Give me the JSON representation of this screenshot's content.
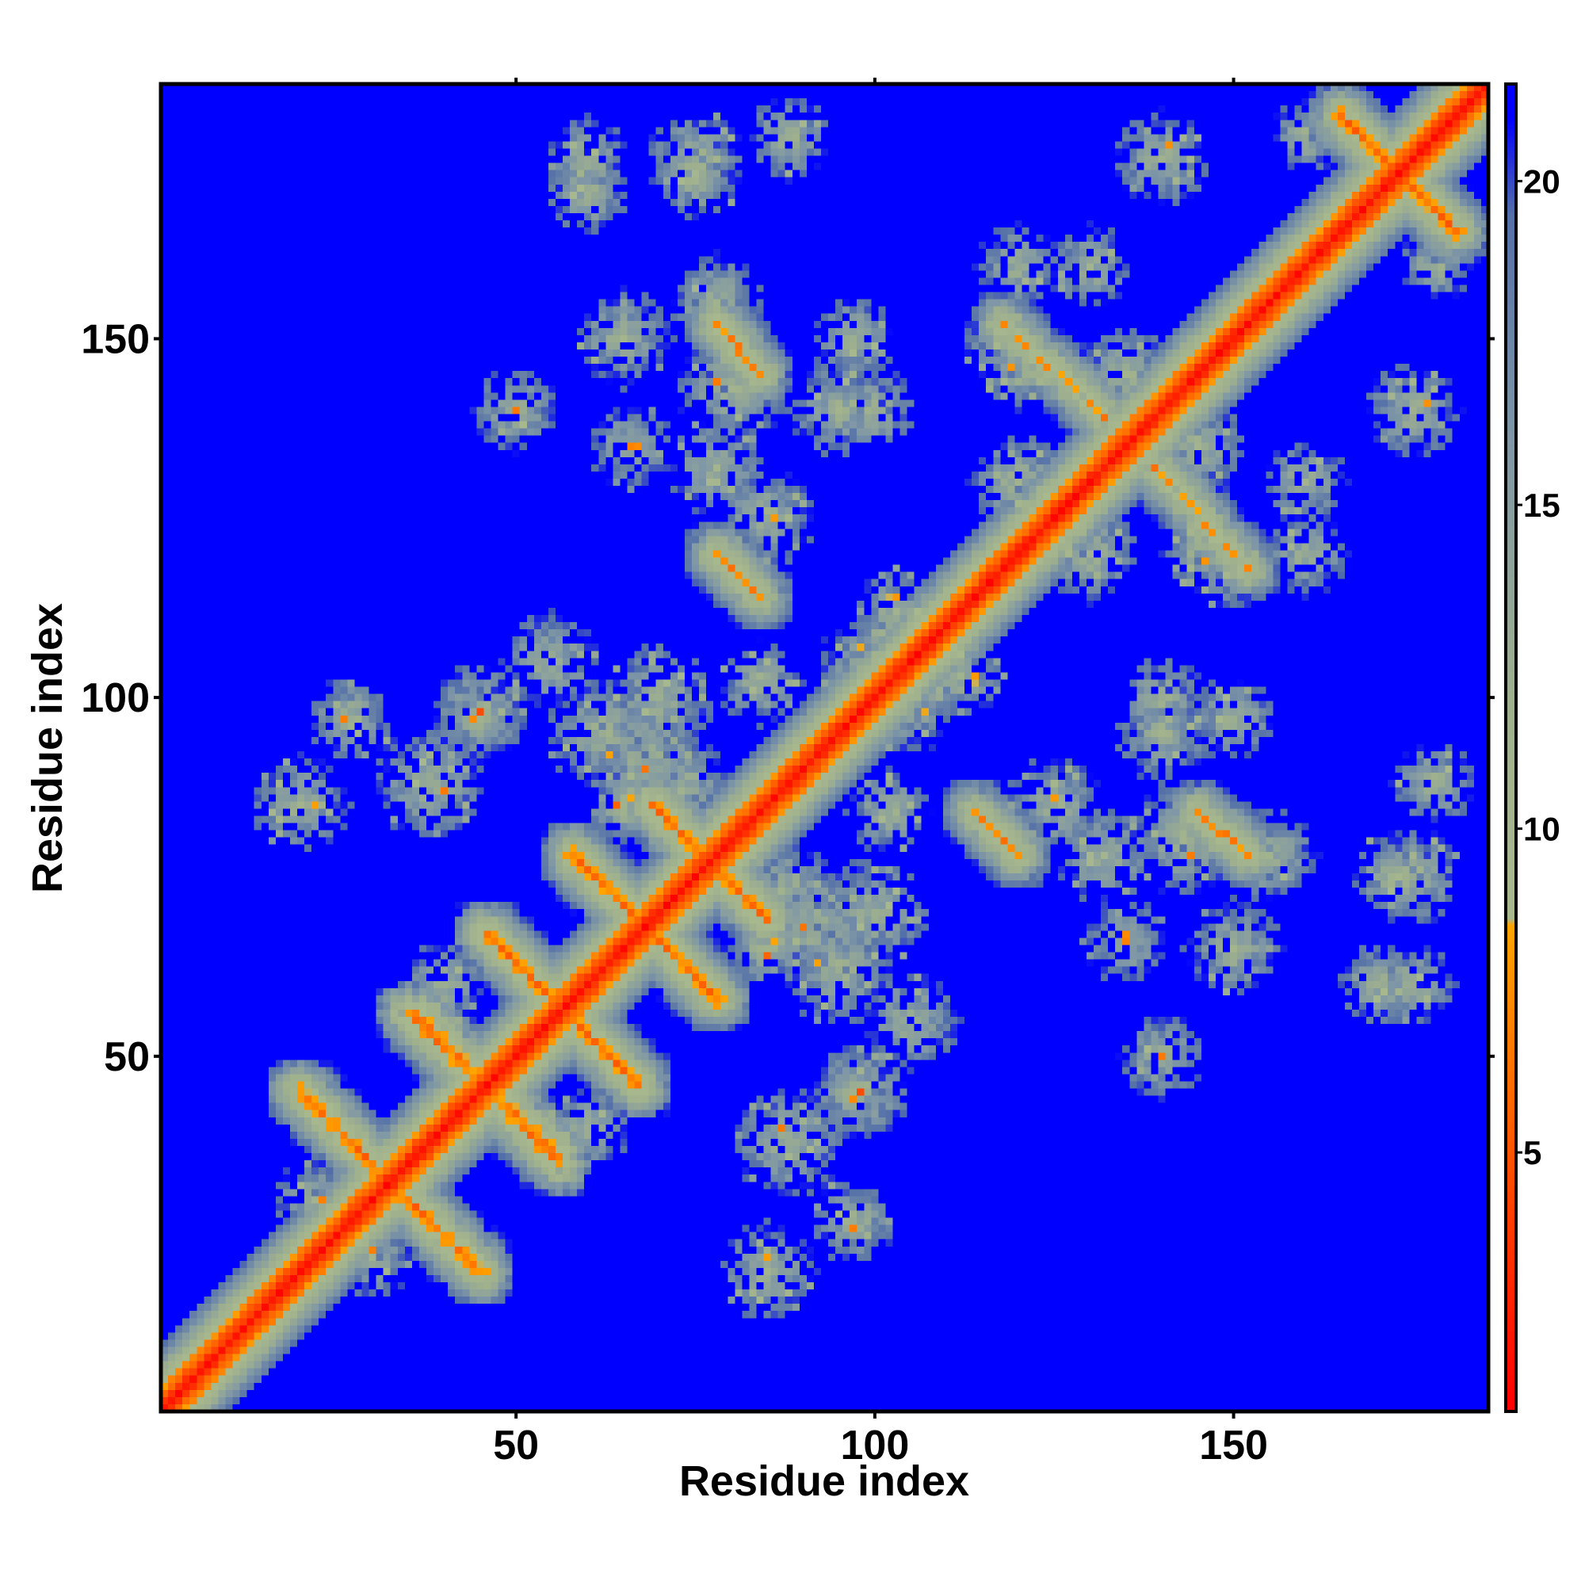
{
  "chart_data": {
    "type": "heatmap",
    "title": "",
    "xlabel": "Residue index",
    "ylabel": "Residue index",
    "n_residues": 185,
    "xlim": [
      1,
      185
    ],
    "ylim": [
      1,
      185
    ],
    "x_ticks": [
      50,
      100,
      150
    ],
    "y_ticks": [
      50,
      100,
      150
    ],
    "x_tick_labels": [
      "50",
      "100",
      "150"
    ],
    "y_tick_labels": [
      "50",
      "100",
      "150"
    ],
    "colorbar": {
      "range": [
        1,
        21.5
      ],
      "ticks": [
        5,
        10,
        15,
        20
      ],
      "tick_labels": [
        "5",
        "10",
        "15",
        "20"
      ],
      "color_stops": [
        {
          "value": 1,
          "color": "#ff0000"
        },
        {
          "value": 4.5,
          "color": "#ff4a00"
        },
        {
          "value": 8.5,
          "color": "#ffa500"
        },
        {
          "value": 8.6,
          "color": "#a9b98e"
        },
        {
          "value": 12,
          "color": "#9fb08e"
        },
        {
          "value": 16,
          "color": "#7f97a6"
        },
        {
          "value": 19.5,
          "color": "#5470a8"
        },
        {
          "value": 21,
          "color": "#0000ff"
        },
        {
          "value": 21.5,
          "color": "#0000ff"
        }
      ]
    },
    "background_value": 21.5,
    "features": {
      "diagonal": {
        "description": "residue i vs i distance",
        "value_on_diagonal": 1
      },
      "antiparallel_strands": [
        {
          "i_start": 20,
          "i_end": 45,
          "j_start": 45,
          "j_end": 20,
          "min_value": 5
        },
        {
          "i_start": 35,
          "i_end": 56,
          "j_start": 56,
          "j_end": 36,
          "min_value": 5
        },
        {
          "i_start": 46,
          "i_end": 67,
          "j_start": 67,
          "j_end": 46,
          "min_value": 5
        },
        {
          "i_start": 58,
          "i_end": 78,
          "j_start": 78,
          "j_end": 58,
          "min_value": 5
        },
        {
          "i_start": 69,
          "i_end": 85,
          "j_start": 85,
          "j_end": 69,
          "min_value": 5
        },
        {
          "i_start": 165,
          "i_end": 181,
          "j_start": 181,
          "j_end": 165,
          "min_value": 5
        }
      ],
      "parallel_contacts": [
        {
          "i_start": 118,
          "i_end": 132,
          "j_start": 152,
          "j_end": 139,
          "min_value": 6
        },
        {
          "i_start": 145,
          "i_end": 152,
          "j_start": 84,
          "j_end": 78,
          "min_value": 6
        },
        {
          "i_start": 114,
          "i_end": 120,
          "j_start": 84,
          "j_end": 78,
          "min_value": 6
        },
        {
          "i_start": 78,
          "i_end": 84,
          "j_start": 152,
          "j_end": 145,
          "min_value": 6
        },
        {
          "i_start": 78,
          "i_end": 84,
          "j_start": 120,
          "j_end": 114,
          "min_value": 6
        }
      ]
    }
  }
}
